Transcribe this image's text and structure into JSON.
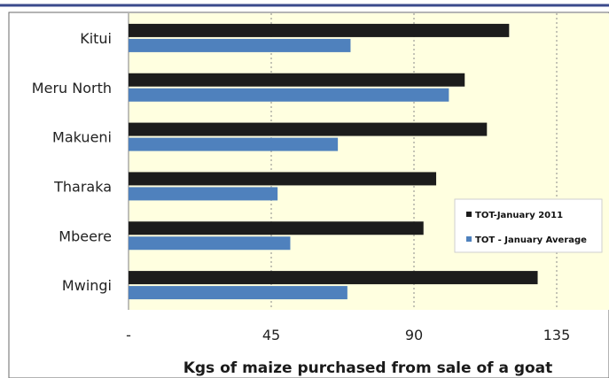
{
  "chart_data": {
    "type": "bar",
    "orientation": "horizontal",
    "categories": [
      "Kitui",
      "Meru North",
      "Makueni",
      "Tharaka",
      "Mbeere",
      "Mwingi"
    ],
    "series": [
      {
        "name": "TOT-January 2011",
        "values": [
          120,
          106,
          113,
          97,
          93,
          129
        ],
        "color": "#1c1c1c"
      },
      {
        "name": "TOT - January Average",
        "values": [
          70,
          101,
          66,
          47,
          51,
          69
        ],
        "color": "#4f81bd"
      }
    ],
    "x_ticks": [
      {
        "value": 0,
        "label": "-"
      },
      {
        "value": 45,
        "label": "45"
      },
      {
        "value": 90,
        "label": "90"
      },
      {
        "value": 135,
        "label": "135"
      }
    ],
    "xlim": [
      0,
      152
    ],
    "xlabel": "Kgs of maize purchased from sale of a goat",
    "grid": "vertical dashed",
    "legend_position": "right",
    "plot_background": "#ffffe0",
    "frame_color": "#3b4a8c"
  }
}
